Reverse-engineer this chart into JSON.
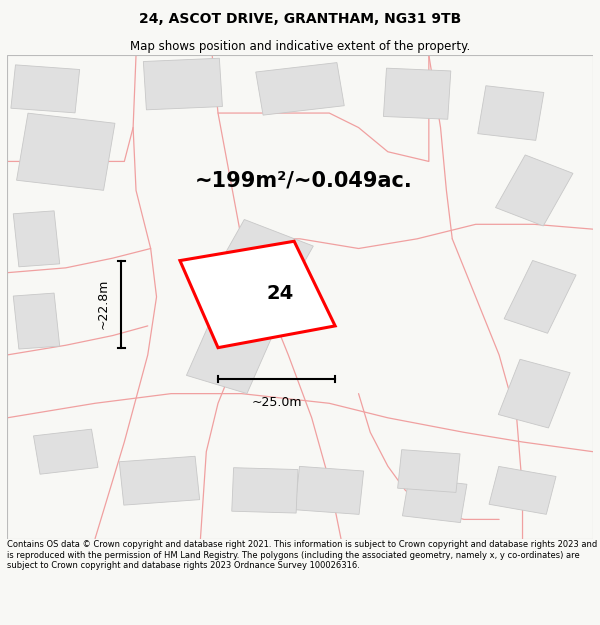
{
  "title": "24, ASCOT DRIVE, GRANTHAM, NG31 9TB",
  "subtitle": "Map shows position and indicative extent of the property.",
  "area_label": "~199m²/~0.049ac.",
  "property_number": "24",
  "width_label": "~25.0m",
  "height_label": "~22.8m",
  "footer": "Contains OS data © Crown copyright and database right 2021. This information is subject to Crown copyright and database rights 2023 and is reproduced with the permission of HM Land Registry. The polygons (including the associated geometry, namely x, y co-ordinates) are subject to Crown copyright and database rights 2023 Ordnance Survey 100026316.",
  "bg_color": "#f8f8f5",
  "map_bg": "#ffffff",
  "property_color": "#ff0000",
  "road_color": "#f0a0a0",
  "building_color": "#e0e0e0",
  "building_edge": "#c8c8c8",
  "title_fontsize": 10,
  "subtitle_fontsize": 8.5,
  "footer_fontsize": 6.0,
  "area_fontsize": 15,
  "number_fontsize": 14
}
